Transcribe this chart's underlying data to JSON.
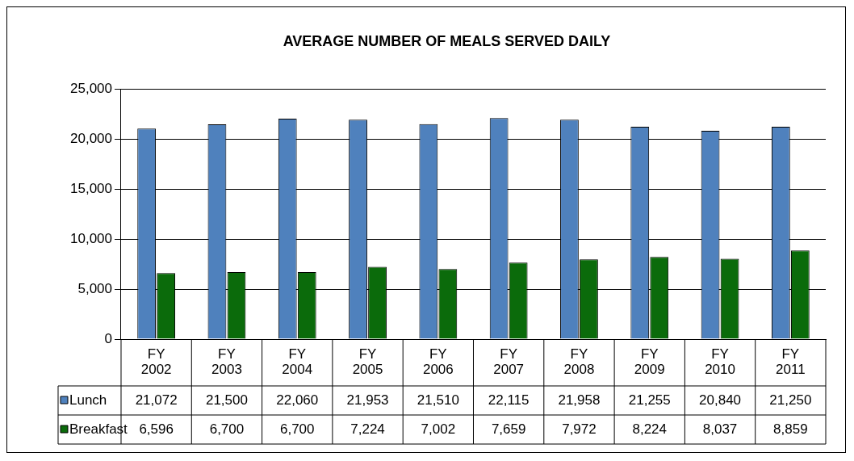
{
  "chart_data": {
    "type": "bar",
    "title": "AVERAGE NUMBER OF MEALS SERVED DAILY",
    "categories": [
      "FY 2002",
      "FY 2003",
      "FY 2004",
      "FY 2005",
      "FY 2006",
      "FY 2007",
      "FY 2008",
      "FY 2009",
      "FY 2010",
      "FY 2011"
    ],
    "series": [
      {
        "name": "Lunch",
        "color": "#4f81bd",
        "values": [
          21072,
          21500,
          22060,
          21953,
          21510,
          22115,
          21958,
          21255,
          20840,
          21250
        ],
        "value_labels": [
          "21,072",
          "21,500",
          "22,060",
          "21,953",
          "21,510",
          "22,115",
          "21,958",
          "21,255",
          "20,840",
          "21,250"
        ]
      },
      {
        "name": "Breakfast",
        "color": "#0b6b0b",
        "values": [
          6596,
          6700,
          6700,
          7224,
          7002,
          7659,
          7972,
          8224,
          8037,
          8859
        ],
        "value_labels": [
          "6,596",
          "6,700",
          "6,700",
          "7,224",
          "7,002",
          "7,659",
          "7,972",
          "8,224",
          "8,037",
          "8,859"
        ]
      }
    ],
    "ylim": [
      0,
      25000
    ],
    "yticks": [
      0,
      {
        "value": 5000,
        "label": "5,000"
      },
      {
        "value": 10000,
        "label": "10,000"
      },
      {
        "value": 15000,
        "label": "15,000"
      },
      {
        "value": 20000,
        "label": "20,000"
      },
      {
        "value": 25000,
        "label": "25,000"
      }
    ],
    "grid": "y",
    "legend": "bottom"
  }
}
